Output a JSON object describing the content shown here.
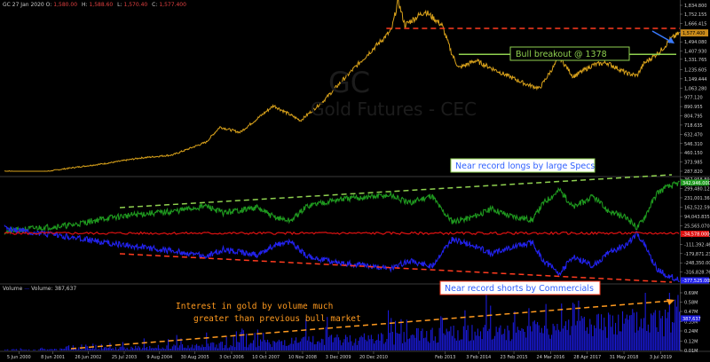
{
  "header": {
    "symbol": "GC",
    "date": "27 Jan 2020",
    "open_label": "O:",
    "open": "1,580.00",
    "high_label": "H:",
    "high": "1,588.60",
    "low_label": "L:",
    "low": "1,570.40",
    "close_label": "C:",
    "close": "1,577.400"
  },
  "watermark": {
    "symbol": "GC",
    "name": "Gold Futures - CEC"
  },
  "volume_header": {
    "label": "Volume",
    "series_label": "Volume:",
    "value": "387,637"
  },
  "colors": {
    "background": "#000000",
    "price": "#d9a21b",
    "large_specs": "#1f9a1f",
    "commercials": "#2222ee",
    "zero_line": "#dd1111",
    "volume": "#1a1ad8",
    "dashed_red": "#ff3b1f",
    "dashed_green": "#8fd14f",
    "dashed_orange": "#ff9a1f",
    "arrow": "#3a7bff"
  },
  "chart_data": [
    {
      "type": "line",
      "panel": "price",
      "series": [],
      "y_ticks": [
        "1,834.800",
        "1,752.155",
        "1,666.415",
        "1,580.680",
        "1,494.080",
        "1,407.930",
        "1,331.765",
        "1,235.605",
        "1,149.444",
        "1,063.280",
        "977.120",
        "890.955",
        "804.795",
        "718.635",
        "632.470",
        "546.310",
        "460.150",
        "373.985",
        "287.820"
      ],
      "ylim": [
        287.82,
        1834.8
      ],
      "points": [
        [
          2000.0,
          290
        ],
        [
          2001.0,
          275
        ],
        [
          2002.0,
          320
        ],
        [
          2003.0,
          360
        ],
        [
          2004.0,
          410
        ],
        [
          2005.0,
          440
        ],
        [
          2006.0,
          560
        ],
        [
          2006.4,
          700
        ],
        [
          2007.0,
          650
        ],
        [
          2008.0,
          900
        ],
        [
          2008.8,
          760
        ],
        [
          2009.5,
          950
        ],
        [
          2010.0,
          1120
        ],
        [
          2010.8,
          1380
        ],
        [
          2011.5,
          1600
        ],
        [
          2011.7,
          1880
        ],
        [
          2011.9,
          1650
        ],
        [
          2012.5,
          1780
        ],
        [
          2013.0,
          1650
        ],
        [
          2013.3,
          1380
        ],
        [
          2013.5,
          1250
        ],
        [
          2014.0,
          1320
        ],
        [
          2014.8,
          1200
        ],
        [
          2015.5,
          1100
        ],
        [
          2015.9,
          1060
        ],
        [
          2016.5,
          1350
        ],
        [
          2016.9,
          1170
        ],
        [
          2017.5,
          1280
        ],
        [
          2017.9,
          1300
        ],
        [
          2018.5,
          1200
        ],
        [
          2018.8,
          1180
        ],
        [
          2019.0,
          1290
        ],
        [
          2019.5,
          1410
        ],
        [
          2019.8,
          1520
        ],
        [
          2020.07,
          1577.4
        ]
      ],
      "annotations": [
        {
          "text": "Bull breakout @ 1378",
          "border": "#8fd14f",
          "color": "#8fd14f"
        }
      ],
      "current_value": "1,577.400"
    },
    {
      "type": "line",
      "panel": "cot",
      "series": [],
      "y_ticks": [
        "367,958.890",
        "299,480.125",
        "231,001.360",
        "162,522.595",
        "94,043.835",
        "25,565.070",
        "-42,913.700",
        "-111,392.465",
        "-179,871.230",
        "-248,350.000",
        "-316,828.765",
        "-377,525.000"
      ],
      "current_values": [
        "342,946.000",
        "-34,578.000",
        "-377,525.000"
      ],
      "large_specs_points": [
        [
          2000.0,
          -20000
        ],
        [
          2001.0,
          10000
        ],
        [
          2002.0,
          30000
        ],
        [
          2003.0,
          80000
        ],
        [
          2004.0,
          110000
        ],
        [
          2005.0,
          130000
        ],
        [
          2006.0,
          170000
        ],
        [
          2006.5,
          120000
        ],
        [
          2007.5,
          160000
        ],
        [
          2008.0,
          90000
        ],
        [
          2008.5,
          60000
        ],
        [
          2009.0,
          170000
        ],
        [
          2009.5,
          200000
        ],
        [
          2010.0,
          220000
        ],
        [
          2010.5,
          230000
        ],
        [
          2011.5,
          250000
        ],
        [
          2012.0,
          190000
        ],
        [
          2012.7,
          250000
        ],
        [
          2013.0,
          140000
        ],
        [
          2013.3,
          60000
        ],
        [
          2013.8,
          80000
        ],
        [
          2014.5,
          150000
        ],
        [
          2015.0,
          100000
        ],
        [
          2015.7,
          70000
        ],
        [
          2016.0,
          190000
        ],
        [
          2016.5,
          290000
        ],
        [
          2016.9,
          160000
        ],
        [
          2017.5,
          240000
        ],
        [
          2017.9,
          140000
        ],
        [
          2018.5,
          80000
        ],
        [
          2018.8,
          10000
        ],
        [
          2019.0,
          80000
        ],
        [
          2019.4,
          270000
        ],
        [
          2019.7,
          310000
        ],
        [
          2020.07,
          342946
        ]
      ],
      "commercials_points": [
        [
          2000.0,
          10000
        ],
        [
          2001.0,
          -30000
        ],
        [
          2002.0,
          -60000
        ],
        [
          2003.0,
          -100000
        ],
        [
          2004.0,
          -130000
        ],
        [
          2005.0,
          -160000
        ],
        [
          2006.0,
          -200000
        ],
        [
          2006.5,
          -150000
        ],
        [
          2007.5,
          -190000
        ],
        [
          2008.0,
          -120000
        ],
        [
          2008.5,
          -90000
        ],
        [
          2009.0,
          -200000
        ],
        [
          2009.5,
          -230000
        ],
        [
          2010.0,
          -250000
        ],
        [
          2010.5,
          -260000
        ],
        [
          2011.5,
          -290000
        ],
        [
          2012.0,
          -230000
        ],
        [
          2012.7,
          -280000
        ],
        [
          2013.0,
          -170000
        ],
        [
          2013.3,
          -80000
        ],
        [
          2013.8,
          -110000
        ],
        [
          2014.5,
          -180000
        ],
        [
          2015.0,
          -140000
        ],
        [
          2015.7,
          -100000
        ],
        [
          2016.0,
          -230000
        ],
        [
          2016.5,
          -330000
        ],
        [
          2016.9,
          -200000
        ],
        [
          2017.5,
          -270000
        ],
        [
          2017.9,
          -180000
        ],
        [
          2018.5,
          -110000
        ],
        [
          2018.8,
          -30000
        ],
        [
          2019.0,
          -110000
        ],
        [
          2019.4,
          -300000
        ],
        [
          2019.7,
          -340000
        ],
        [
          2020.07,
          -377525
        ]
      ],
      "annotations": [
        {
          "text": "Near record longs by large Specs",
          "border": "#8fd14f",
          "color": "#2f5fff"
        },
        {
          "text": "Near record shorts by Commercials",
          "border": "#ff3b1f",
          "color": "#2f5fff"
        }
      ]
    },
    {
      "type": "bar",
      "panel": "volume",
      "series": [],
      "y_ticks": [
        "0.69M",
        "0.58M",
        "0.47M",
        "0.35M",
        "0.24M",
        "0.12M",
        "0.01M"
      ],
      "ylim": [
        0.01,
        0.69
      ],
      "current_value": "387,637",
      "annotations": [
        {
          "text": "Interest in gold by volume much greater than previous bull market",
          "color": "#ff9a1f"
        }
      ]
    }
  ],
  "x_axis": {
    "ticks": [
      "5 Jun 2000",
      "8 Jun 2001",
      "26 Jun 2002",
      "25 Jul 2003",
      "9 Aug 2004",
      "30 Aug 2005",
      "3 Oct 2006",
      "10 Oct 2007",
      "10 Nov 2008",
      "3 Dec 2009",
      "20 Dec 2010",
      "Feb 2013",
      "3 Feb 2014",
      "23 Feb 2015",
      "24 Mar 2016",
      "28 Apr 2017",
      "31 May 2018",
      "3 Jul 2019"
    ],
    "tick_years": [
      2000.43,
      2001.44,
      2002.49,
      2003.56,
      2004.61,
      2005.66,
      2006.75,
      2007.77,
      2008.86,
      2009.92,
      2010.97,
      2013.1,
      2014.09,
      2015.14,
      2016.23,
      2017.32,
      2018.41,
      2019.5
    ]
  }
}
